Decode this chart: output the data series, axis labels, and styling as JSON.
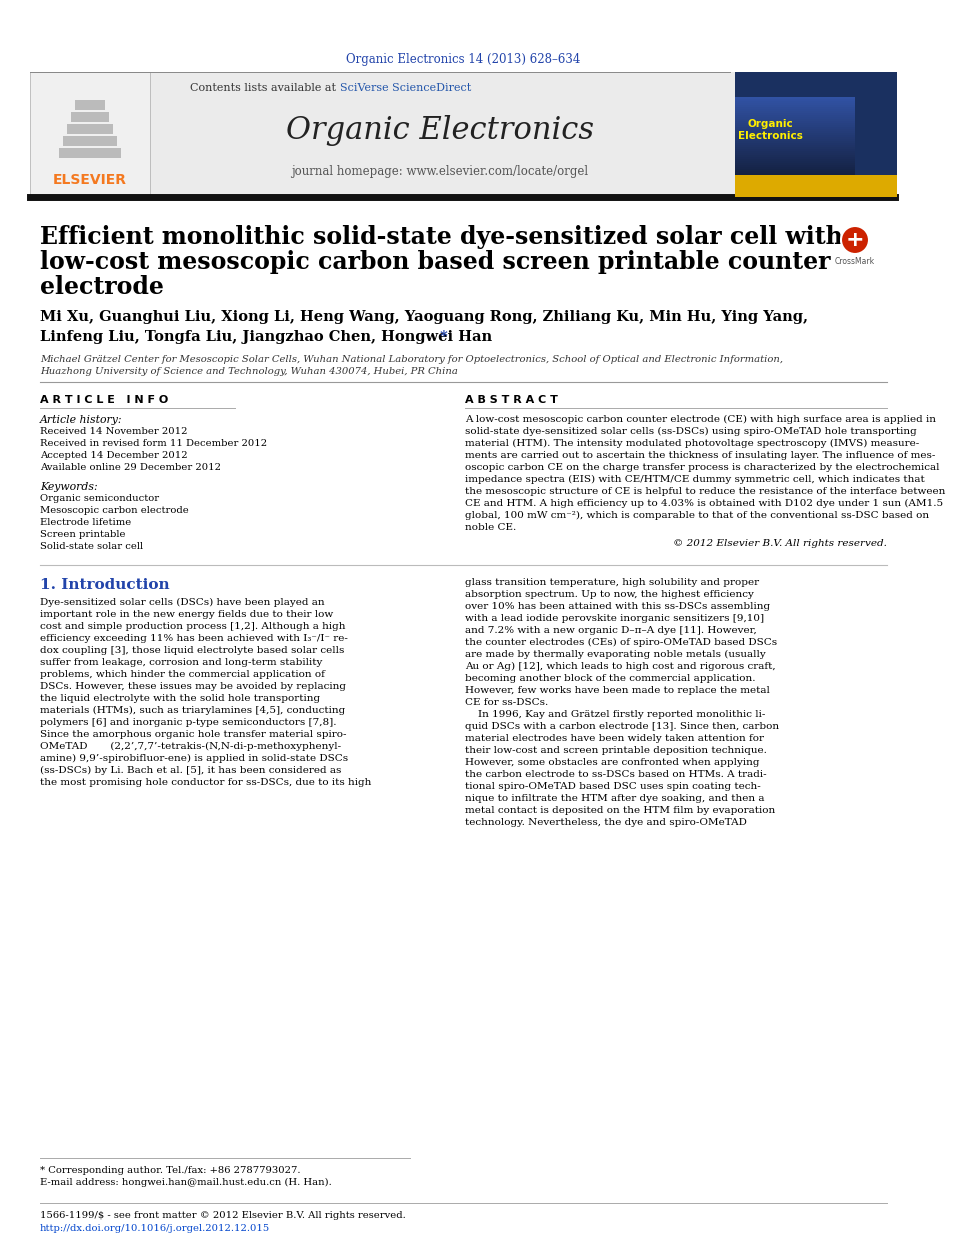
{
  "journal_ref": "Organic Electronics 14 (2013) 628–634",
  "journal_ref_color": "#2244aa",
  "header_bg": "#e8e8e8",
  "header_journal_name": "Organic Electronics",
  "header_contents_text": "Contents lists available at",
  "header_sciverse": "SciVerse ScienceDirect",
  "header_homepage": "journal homepage: www.elsevier.com/locate/orgel",
  "elsevier_color": "#f47920",
  "title_line1": "Efficient monolithic solid-state dye-sensitized solar cell with a",
  "title_line2": "low-cost mesoscopic carbon based screen printable counter",
  "title_line3": "electrode",
  "authors_line1": "Mi Xu, Guanghui Liu, Xiong Li, Heng Wang, Yaoguang Rong, Zhiliang Ku, Min Hu, Ying Yang,",
  "authors_line2": "Linfeng Liu, Tongfa Liu, Jiangzhao Chen, Hongwei Han",
  "affiliation_line1": "Michael Grätzel Center for Mesoscopic Solar Cells, Wuhan National Laboratory for Optoelectronics, School of Optical and Electronic Information,",
  "affiliation_line2": "Huazhong University of Science and Technology, Wuhan 430074, Hubei, PR China",
  "article_info_header": "A R T I C L E   I N F O",
  "abstract_header": "A B S T R A C T",
  "article_history_label": "Article history:",
  "received": "Received 14 November 2012",
  "revised": "Received in revised form 11 December 2012",
  "accepted": "Accepted 14 December 2012",
  "online": "Available online 29 December 2012",
  "keywords_label": "Keywords:",
  "keywords": [
    "Organic semiconductor",
    "Mesoscopic carbon electrode",
    "Electrode lifetime",
    "Screen printable",
    "Solid-state solar cell"
  ],
  "abstract_lines": [
    "A low-cost mesoscopic carbon counter electrode (CE) with high surface area is applied in",
    "solid-state dye-sensitized solar cells (ss-DSCs) using spiro-OMeTAD hole transporting",
    "material (HTM). The intensity modulated photovoltage spectroscopy (IMVS) measure-",
    "ments are carried out to ascertain the thickness of insulating layer. The influence of mes-",
    "oscopic carbon CE on the charge transfer process is characterized by the electrochemical",
    "impedance spectra (EIS) with CE/HTM/CE dummy symmetric cell, which indicates that",
    "the mesoscopic structure of CE is helpful to reduce the resistance of the interface between",
    "CE and HTM. A high efficiency up to 4.03% is obtained with D102 dye under 1 sun (AM1.5",
    "global, 100 mW cm⁻²), which is comparable to that of the conventional ss-DSC based on",
    "noble CE."
  ],
  "copyright": "© 2012 Elsevier B.V. All rights reserved.",
  "intro_header": "1. Introduction",
  "intro_col1_lines": [
    "Dye-sensitized solar cells (DSCs) have been played an",
    "important role in the new energy fields due to their low",
    "cost and simple production process [1,2]. Although a high",
    "efficiency exceeding 11% has been achieved with I₃⁻/I⁻ re-",
    "dox coupling [3], those liquid electrolyte based solar cells",
    "suffer from leakage, corrosion and long-term stability",
    "problems, which hinder the commercial application of",
    "DSCs. However, these issues may be avoided by replacing",
    "the liquid electrolyte with the solid hole transporting",
    "materials (HTMs), such as triarylamines [4,5], conducting",
    "polymers [6] and inorganic p-type semiconductors [7,8].",
    "Since the amorphous organic hole transfer material spiro-",
    "OMeTAD       (2,2’,7,7’-tetrakis-(N,N-di-p-methoxyphenyl-",
    "amine) 9,9’-spirobifluor-ene) is applied in solid-state DSCs",
    "(ss-DSCs) by Li. Bach et al. [5], it has been considered as",
    "the most promising hole conductor for ss-DSCs, due to its high"
  ],
  "intro_col2_lines": [
    "glass transition temperature, high solubility and proper",
    "absorption spectrum. Up to now, the highest efficiency",
    "over 10% has been attained with this ss-DSCs assembling",
    "with a lead iodide perovskite inorganic sensitizers [9,10]",
    "and 7.2% with a new organic D–π–A dye [11]. However,",
    "the counter electrodes (CEs) of spiro-OMeTAD based DSCs",
    "are made by thermally evaporating noble metals (usually",
    "Au or Ag) [12], which leads to high cost and rigorous craft,",
    "becoming another block of the commercial application.",
    "However, few works have been made to replace the metal",
    "CE for ss-DSCs.",
    "    In 1996, Kay and Grätzel firstly reported monolithic li-",
    "quid DSCs with a carbon electrode [13]. Since then, carbon",
    "material electrodes have been widely taken attention for",
    "their low-cost and screen printable deposition technique.",
    "However, some obstacles are confronted when applying",
    "the carbon electrode to ss-DSCs based on HTMs. A tradi-",
    "tional spiro-OMeTAD based DSC uses spin coating tech-",
    "nique to infiltrate the HTM after dye soaking, and then a",
    "metal contact is deposited on the HTM film by evaporation",
    "technology. Nevertheless, the dye and spiro-OMeTAD"
  ],
  "footnote1": "* Corresponding author. Tel./fax: +86 2787793027.",
  "footnote2": "E-mail address: hongwei.han@mail.hust.edu.cn (H. Han).",
  "footer1": "1566-1199/$ - see front matter © 2012 Elsevier B.V. All rights reserved.",
  "footer2": "http://dx.doi.org/10.1016/j.orgel.2012.12.015",
  "footer2_color": "#0044cc",
  "bg_color": "#ffffff",
  "text_color": "#000000",
  "thin_line_color": "#888888",
  "thick_line_color": "#111111"
}
